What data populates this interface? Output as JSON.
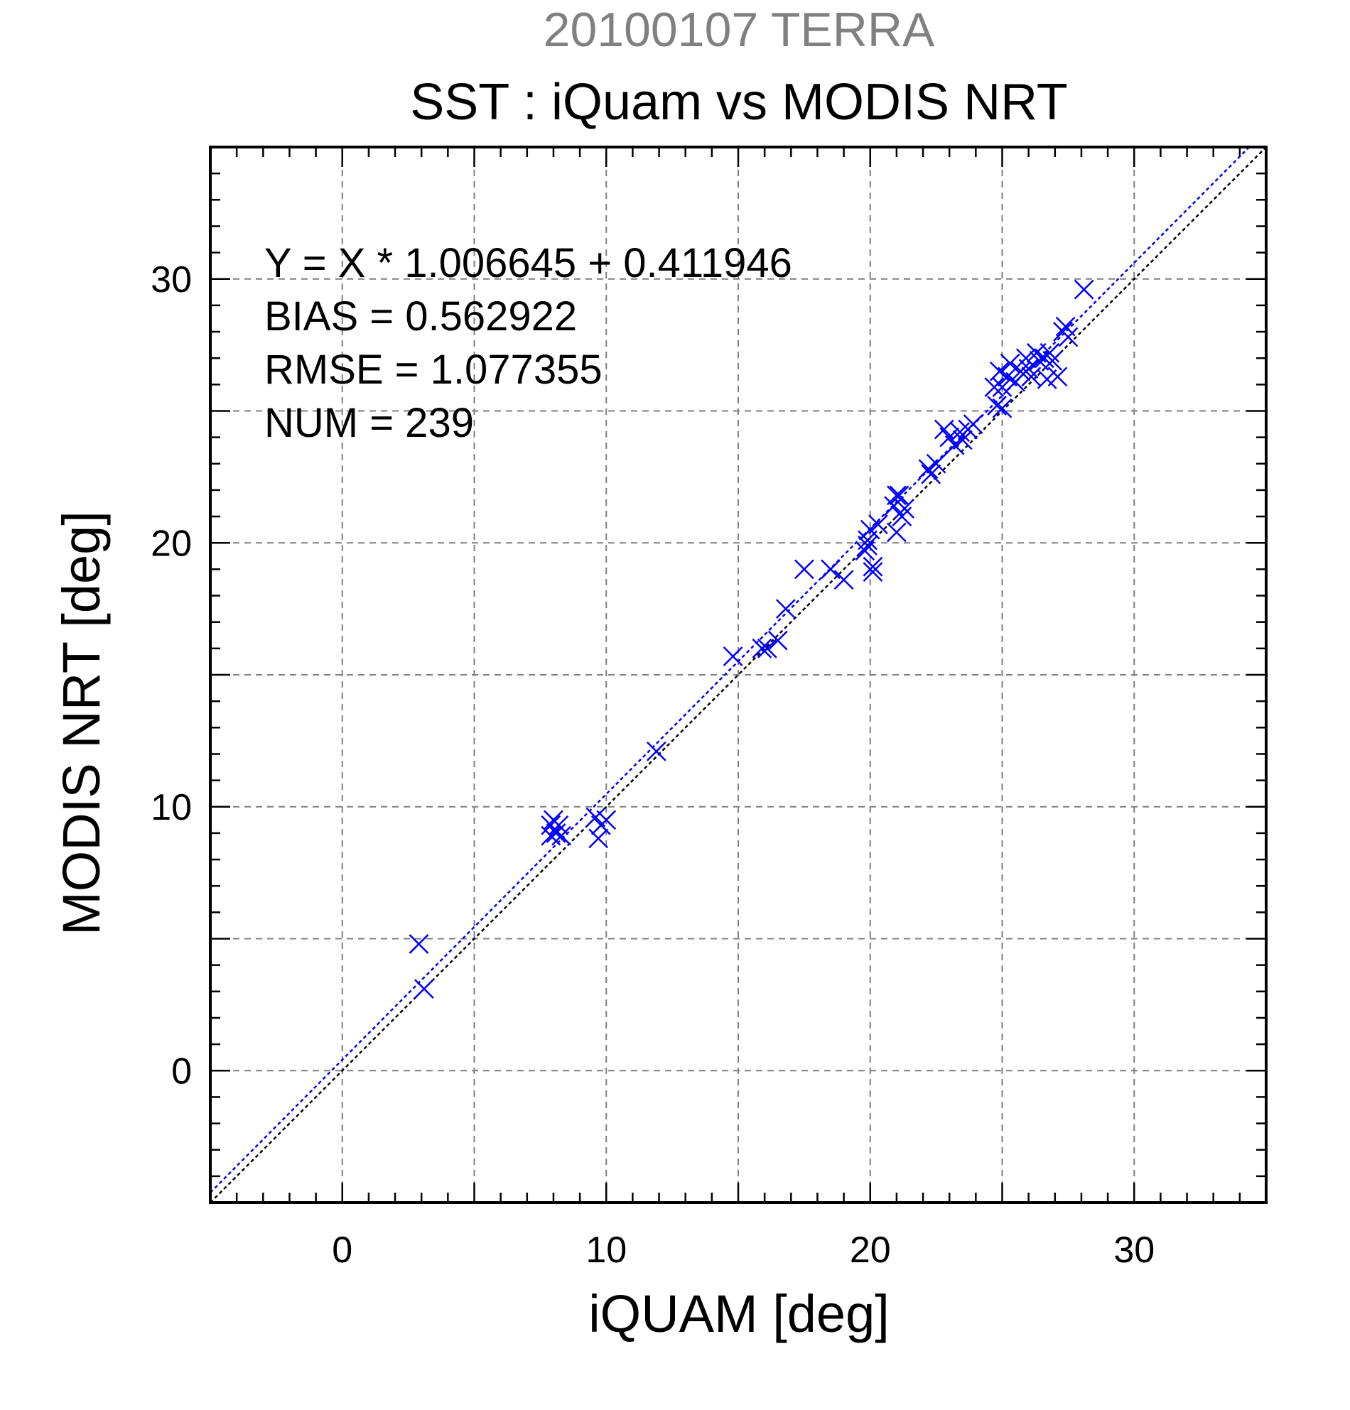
{
  "supertitle": "20100107 TERRA",
  "title": "SST : iQuam vs MODIS NRT",
  "stats": {
    "equation": "Y = X * 1.006645 + 0.411946",
    "bias": "BIAS = 0.562922",
    "rmse": "RMSE = 1.077355",
    "num": "NUM = 239"
  },
  "colors": {
    "points": "#0000ff",
    "fit_line": "#0000ff",
    "identity_line": "#000000",
    "grid": "#7f7f7f",
    "supertitle": "#808080"
  },
  "chart_data": {
    "type": "scatter",
    "title": "SST : iQuam vs MODIS NRT",
    "xlabel": "iQUAM [deg]",
    "ylabel": "MODIS NRT [deg]",
    "xlim": [
      -5,
      35
    ],
    "ylim": [
      -5,
      35
    ],
    "x_ticks": [
      0,
      10,
      20,
      30
    ],
    "y_ticks": [
      0,
      10,
      20,
      30
    ],
    "x_tick_labels": [
      "0",
      "10",
      "20",
      "30"
    ],
    "y_tick_labels": [
      "0",
      "10",
      "20",
      "30"
    ],
    "grid": true,
    "marker": "x",
    "lines": [
      {
        "kind": "fit",
        "slope": 1.006645,
        "intercept": 0.411946,
        "style": "dotted",
        "color": "#0000ff"
      },
      {
        "kind": "identity",
        "slope": 1,
        "intercept": 0,
        "style": "dotted",
        "color": "#000000"
      }
    ],
    "series": [
      {
        "x": [
          2.9,
          3.1,
          7.9,
          8.0,
          8.1,
          7.9,
          8.2,
          8.3,
          9.6,
          9.8,
          9.7,
          10.0,
          11.9,
          14.8,
          15.9,
          16.1,
          16.5,
          16.8,
          17.5,
          18.5,
          19.0,
          19.9,
          19.8,
          20.0,
          20.1,
          20.3,
          19.9,
          20.1,
          20.9,
          21.1,
          21.0,
          21.3,
          21.2,
          21.0,
          22.2,
          22.3,
          22.5,
          22.8,
          23.0,
          23.2,
          23.4,
          23.5,
          23.7,
          23.9,
          24.7,
          24.8,
          24.9,
          25.0,
          25.2,
          25.0,
          25.3,
          25.5,
          25.7,
          25.9,
          26.0,
          26.1,
          26.3,
          26.4,
          26.6,
          26.8,
          26.7,
          26.9,
          27.1,
          27.3,
          27.5,
          27.4,
          28.1
        ],
        "y": [
          4.8,
          3.1,
          9.3,
          9.5,
          9.0,
          8.9,
          9.3,
          8.9,
          9.6,
          9.3,
          8.8,
          9.5,
          12.1,
          15.7,
          16.0,
          16.0,
          16.3,
          17.5,
          19.0,
          19.0,
          18.6,
          20.1,
          19.7,
          20.5,
          19.1,
          20.7,
          19.9,
          18.9,
          21.4,
          21.8,
          20.4,
          21.3,
          21.0,
          21.8,
          22.8,
          22.6,
          23.0,
          24.3,
          24.0,
          23.7,
          24.2,
          23.9,
          24.3,
          24.5,
          25.9,
          25.2,
          26.5,
          25.9,
          26.3,
          25.1,
          26.8,
          26.1,
          26.5,
          27.0,
          26.6,
          26.3,
          27.2,
          26.9,
          27.0,
          27.2,
          26.2,
          26.9,
          26.3,
          28.0,
          27.8,
          28.2,
          29.6
        ]
      }
    ]
  }
}
